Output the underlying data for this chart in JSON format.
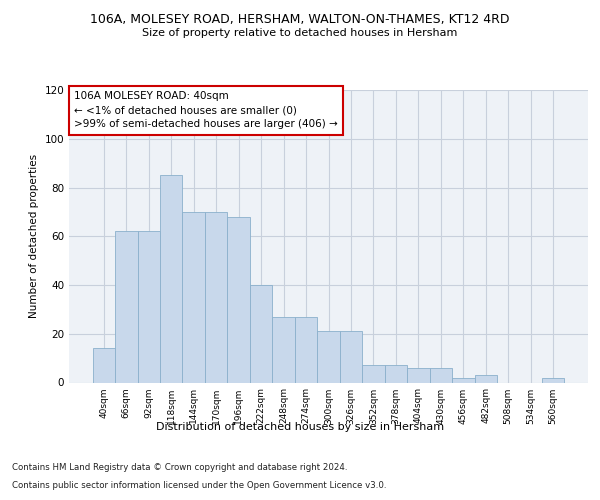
{
  "title1": "106A, MOLESEY ROAD, HERSHAM, WALTON-ON-THAMES, KT12 4RD",
  "title2": "Size of property relative to detached houses in Hersham",
  "xlabel": "Distribution of detached houses by size in Hersham",
  "ylabel": "Number of detached properties",
  "bar_color": "#c8d8eb",
  "bar_edge_color": "#8ab0cc",
  "categories": [
    "40sqm",
    "66sqm",
    "92sqm",
    "118sqm",
    "144sqm",
    "170sqm",
    "196sqm",
    "222sqm",
    "248sqm",
    "274sqm",
    "300sqm",
    "326sqm",
    "352sqm",
    "378sqm",
    "404sqm",
    "430sqm",
    "456sqm",
    "482sqm",
    "508sqm",
    "534sqm",
    "560sqm"
  ],
  "values": [
    14,
    62,
    62,
    85,
    70,
    70,
    68,
    40,
    27,
    27,
    21,
    21,
    7,
    7,
    6,
    6,
    2,
    3,
    0,
    0,
    2
  ],
  "ylim": [
    0,
    120
  ],
  "yticks": [
    0,
    20,
    40,
    60,
    80,
    100,
    120
  ],
  "annotation_box_text": "106A MOLESEY ROAD: 40sqm\n← <1% of detached houses are smaller (0)\n>99% of semi-detached houses are larger (406) →",
  "annotation_box_color": "#ffffff",
  "annotation_box_edge_color": "#cc0000",
  "footnote1": "Contains HM Land Registry data © Crown copyright and database right 2024.",
  "footnote2": "Contains public sector information licensed under the Open Government Licence v3.0.",
  "grid_color": "#c8d0dc",
  "background_color": "#eef2f7"
}
